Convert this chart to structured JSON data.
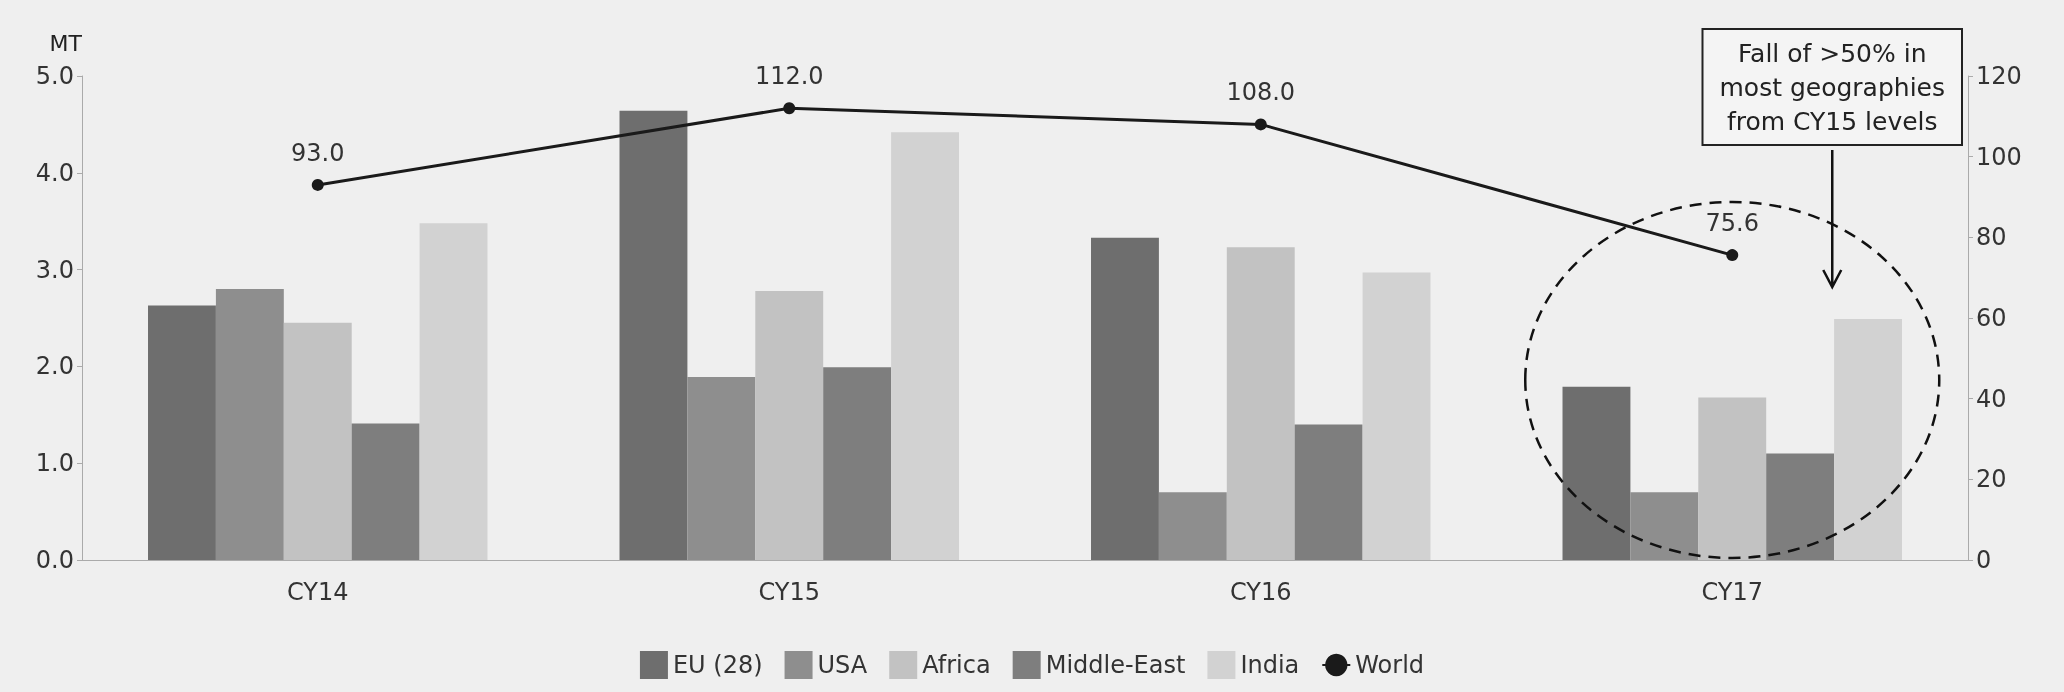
{
  "chart_data": {
    "type": "bar",
    "ylabel": "MT",
    "categories": [
      "CY14",
      "CY15",
      "CY16",
      "CY17"
    ],
    "series": [
      {
        "name": "EU (28)",
        "color": "#6e6e6e",
        "values": [
          2.63,
          4.64,
          3.33,
          1.79
        ]
      },
      {
        "name": "USA",
        "color": "#8e8e8e",
        "values": [
          2.8,
          1.89,
          0.7,
          0.7
        ]
      },
      {
        "name": "Africa",
        "color": "#c2c2c2",
        "values": [
          2.45,
          2.78,
          3.23,
          1.68
        ]
      },
      {
        "name": "Middle-East",
        "color": "#7e7e7e",
        "values": [
          1.41,
          1.99,
          1.4,
          1.1
        ]
      },
      {
        "name": "India",
        "color": "#d2d2d2",
        "values": [
          3.48,
          4.42,
          2.97,
          2.49
        ]
      },
      {
        "name": "World",
        "type": "line",
        "axis": "y2",
        "color": "#1a1a1a",
        "values": [
          93.0,
          112.0,
          108.0,
          75.6
        ],
        "value_labels": [
          "93.0",
          "112.0",
          "108.0",
          "75.6"
        ]
      }
    ],
    "ylim": [
      0,
      5
    ],
    "yticks": [
      {
        "value": 0,
        "label": "0.0"
      },
      {
        "value": 1,
        "label": "1.0"
      },
      {
        "value": 2,
        "label": "2.0"
      },
      {
        "value": 3,
        "label": "3.0"
      },
      {
        "value": 4,
        "label": "4.0"
      },
      {
        "value": 5,
        "label": "5.0"
      }
    ],
    "y2lim": [
      0,
      120
    ],
    "y2ticks": [
      0,
      20,
      40,
      60,
      80,
      100,
      120
    ],
    "marker": "circle",
    "grid": false,
    "legend": "bottom",
    "annotations": [
      "Fall of >50% in\nmost geographies\nfrom CY15 levels"
    ]
  }
}
